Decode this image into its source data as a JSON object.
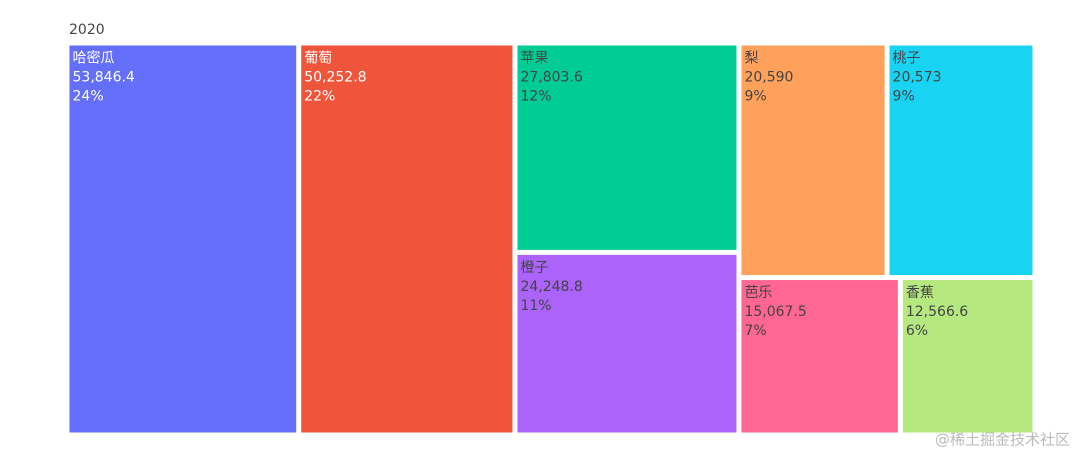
{
  "chart_data": {
    "type": "treemap",
    "title": "2020",
    "categories": [
      "哈密瓜",
      "葡萄",
      "苹果",
      "橙子",
      "梨",
      "桃子",
      "芭乐",
      "香蕉"
    ],
    "values": [
      53846.4,
      50252.8,
      27803.6,
      24248.8,
      20590,
      20573,
      15067.5,
      12566.6
    ],
    "value_labels": [
      "53,846.4",
      "50,252.8",
      "27,803.6",
      "24,248.8",
      "20,590",
      "20,573",
      "15,067.5",
      "12,566.6"
    ],
    "percent_labels": [
      "24%",
      "22%",
      "12%",
      "11%",
      "9%",
      "9%",
      "7%",
      "6%"
    ],
    "colors": [
      "#636efa",
      "#ef553b",
      "#00cc96",
      "#ab63fa",
      "#ffa15a",
      "#19d3f3",
      "#ff6692",
      "#b6e880"
    ],
    "watermark": "@稀土掘金技术社区"
  }
}
